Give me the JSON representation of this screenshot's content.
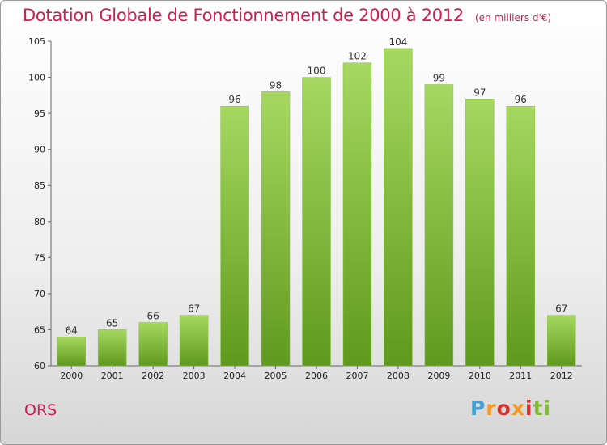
{
  "header": {
    "title": "Dotation Globale de Fonctionnement de 2000 à 2012",
    "subtitle": "(en milliers d'€)"
  },
  "footer": {
    "commune": "ORS",
    "logo_text": "Proxiti"
  },
  "colors": {
    "title": "#cc1f4f",
    "bar_top": "#a6d861",
    "bar_bottom": "#5f9a1c"
  },
  "chart_data": {
    "type": "bar",
    "title": "Dotation Globale de Fonctionnement de 2000 à 2012",
    "subtitle": "(en milliers d'€)",
    "categories": [
      "2000",
      "2001",
      "2002",
      "2003",
      "2004",
      "2005",
      "2006",
      "2007",
      "2008",
      "2009",
      "2010",
      "2011",
      "2012"
    ],
    "values": [
      64,
      65,
      66,
      67,
      96,
      98,
      100,
      102,
      104,
      99,
      97,
      96,
      67
    ],
    "ylim": [
      60,
      105
    ],
    "yticks": [
      60,
      65,
      70,
      75,
      80,
      85,
      90,
      95,
      100,
      105
    ],
    "grid": false,
    "legend": "none"
  }
}
